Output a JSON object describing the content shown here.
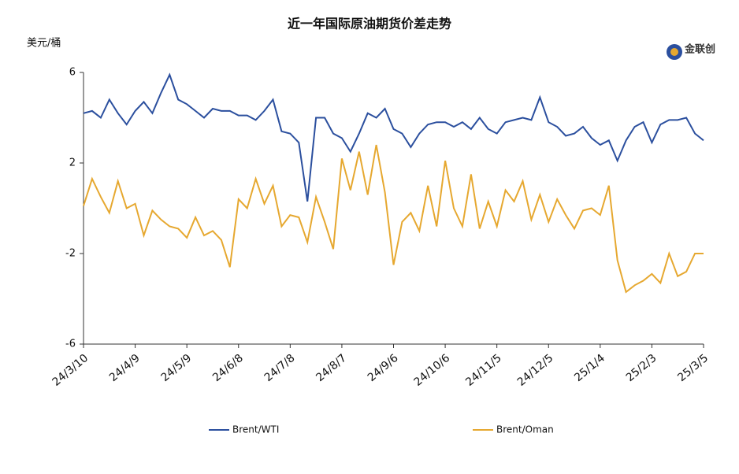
{
  "chart_data": {
    "type": "line",
    "title": "近一年国际原油期货价差走势",
    "y_label": "美元/桶",
    "logo": "金联创",
    "categories": [
      "24/3/10",
      null,
      null,
      null,
      null,
      null,
      "24/4/9",
      null,
      null,
      null,
      null,
      null,
      "24/5/9",
      null,
      null,
      null,
      null,
      null,
      "24/6/8",
      null,
      null,
      null,
      null,
      null,
      "24/7/8",
      null,
      null,
      null,
      null,
      null,
      "24/8/7",
      null,
      null,
      null,
      null,
      null,
      "24/9/6",
      null,
      null,
      null,
      null,
      null,
      "24/10/6",
      null,
      null,
      null,
      null,
      null,
      "24/11/5",
      null,
      null,
      null,
      null,
      null,
      "24/12/5",
      null,
      null,
      null,
      null,
      null,
      "25/1/4",
      null,
      null,
      null,
      null,
      null,
      "25/2/3",
      null,
      null,
      null,
      null,
      null,
      "25/3/5"
    ],
    "series": [
      {
        "name": "Brent/WTI",
        "color": "#2b4f9e",
        "values": [
          4.2,
          4.3,
          4.0,
          4.8,
          4.2,
          3.7,
          4.3,
          4.7,
          4.2,
          5.1,
          5.9,
          4.8,
          4.6,
          4.3,
          4.0,
          4.4,
          4.3,
          4.3,
          4.1,
          4.1,
          3.9,
          4.3,
          4.8,
          3.4,
          3.3,
          2.9,
          0.3,
          4.0,
          4.0,
          3.3,
          3.1,
          2.5,
          3.3,
          4.2,
          4.0,
          4.4,
          3.5,
          3.3,
          2.7,
          3.3,
          3.7,
          3.8,
          3.8,
          3.6,
          3.8,
          3.5,
          4.0,
          3.5,
          3.3,
          3.8,
          3.9,
          4.0,
          3.9,
          4.9,
          3.8,
          3.6,
          3.2,
          3.3,
          3.6,
          3.1,
          2.8,
          3.0,
          2.1,
          3.0,
          3.6,
          3.8,
          2.9,
          3.7,
          3.9,
          3.9,
          4.0,
          3.3,
          3.0
        ]
      },
      {
        "name": "Brent/Oman",
        "color": "#e6a830",
        "values": [
          0.1,
          1.3,
          0.5,
          -0.2,
          1.2,
          0.0,
          0.2,
          -1.2,
          -0.1,
          -0.5,
          -0.8,
          -0.9,
          -1.3,
          -0.4,
          -1.2,
          -1.0,
          -1.4,
          -2.6,
          0.4,
          0.0,
          1.3,
          0.2,
          1.0,
          -0.8,
          -0.3,
          -0.4,
          -1.5,
          0.5,
          -0.6,
          -1.8,
          2.2,
          0.8,
          2.5,
          0.6,
          2.8,
          0.7,
          -2.5,
          -0.6,
          -0.2,
          -1.0,
          1.0,
          -0.8,
          2.1,
          0.0,
          -0.8,
          1.5,
          -0.9,
          0.3,
          -0.8,
          0.8,
          0.3,
          1.2,
          -0.5,
          0.6,
          -0.6,
          0.4,
          -0.3,
          -0.9,
          -0.1,
          0.0,
          -0.3,
          1.0,
          -2.3,
          -3.7,
          -3.4,
          -3.2,
          -2.9,
          -3.3,
          -2.0,
          -3.0,
          -2.8,
          -2.0,
          -2.0
        ]
      }
    ],
    "ylim": [
      -6,
      6
    ],
    "yticks": [
      -6,
      -2,
      2,
      6
    ],
    "grid": false
  }
}
